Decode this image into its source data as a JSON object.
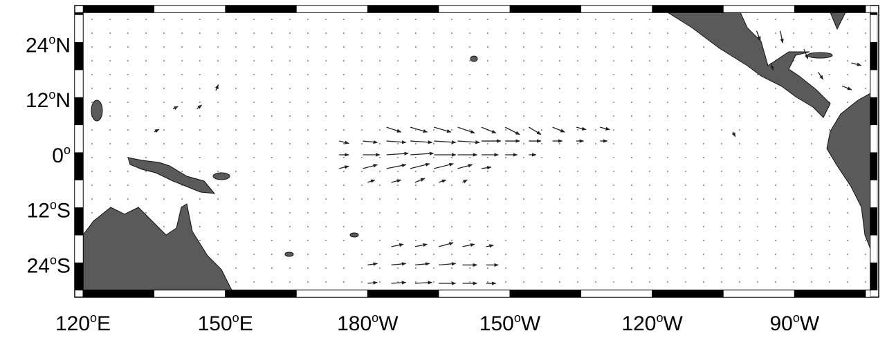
{
  "map": {
    "xlim": [
      120,
      286
    ],
    "ylim": [
      -29.5,
      31
    ],
    "lon_ticks": [
      {
        "value": 120,
        "deg": "120",
        "sup": "o",
        "hemi": "E"
      },
      {
        "value": 150,
        "deg": "150",
        "sup": "o",
        "hemi": "E"
      },
      {
        "value": 180,
        "deg": "180",
        "sup": "o",
        "hemi": "W"
      },
      {
        "value": 210,
        "deg": "150",
        "sup": "o",
        "hemi": "W"
      },
      {
        "value": 240,
        "deg": "120",
        "sup": "o",
        "hemi": "W"
      },
      {
        "value": 270,
        "deg": "90",
        "sup": "o",
        "hemi": "W"
      }
    ],
    "lat_ticks": [
      {
        "value": 24,
        "deg": "24",
        "sup": "o",
        "hemi": "N"
      },
      {
        "value": 12,
        "deg": "12",
        "sup": "o",
        "hemi": "N"
      },
      {
        "value": 0,
        "deg": "0",
        "sup": "o"
      },
      {
        "value": -12,
        "deg": "12",
        "sup": "o",
        "hemi": "S"
      },
      {
        "value": -24,
        "deg": "24",
        "sup": "o",
        "hemi": "S"
      }
    ],
    "vectors": [
      [
        184,
        6,
        3,
        -1
      ],
      [
        189,
        6,
        3.5,
        -1
      ],
      [
        194,
        6,
        3.5,
        -1
      ],
      [
        199,
        6,
        3.5,
        -1.2
      ],
      [
        204,
        6,
        3,
        -1.2
      ],
      [
        209,
        6,
        3,
        -1.5
      ],
      [
        214,
        6,
        2.5,
        -1.5
      ],
      [
        219,
        6,
        2.5,
        -1
      ],
      [
        224,
        6,
        2,
        -0.5
      ],
      [
        229,
        6,
        2,
        -0.5
      ],
      [
        174,
        3,
        2,
        -0.5
      ],
      [
        179,
        3,
        3,
        -0.3
      ],
      [
        184,
        3,
        4,
        -0.3
      ],
      [
        189,
        3,
        4.5,
        -0.3
      ],
      [
        194,
        3,
        4.5,
        -0.3
      ],
      [
        199,
        3,
        4.5,
        -0.3
      ],
      [
        204,
        3,
        4,
        0
      ],
      [
        209,
        3,
        3,
        0
      ],
      [
        214,
        3,
        2.5,
        0
      ],
      [
        219,
        3,
        2,
        0
      ],
      [
        224,
        3,
        1.5,
        0
      ],
      [
        229,
        3,
        1.5,
        0
      ],
      [
        174,
        0,
        2,
        0
      ],
      [
        179,
        0,
        3.5,
        0
      ],
      [
        184,
        0,
        4.5,
        0.3
      ],
      [
        189,
        0,
        4.8,
        0.3
      ],
      [
        194,
        0,
        4.5,
        0
      ],
      [
        199,
        0,
        4,
        0
      ],
      [
        204,
        0,
        3.5,
        0
      ],
      [
        209,
        0,
        2.5,
        0
      ],
      [
        214,
        0,
        1.5,
        0
      ],
      [
        174,
        -3,
        2,
        0.5
      ],
      [
        179,
        -3,
        3,
        0.8
      ],
      [
        184,
        -3,
        4,
        0.8
      ],
      [
        189,
        -3,
        4,
        1
      ],
      [
        194,
        -3,
        4,
        1
      ],
      [
        199,
        -3,
        3,
        0.8
      ],
      [
        204,
        -3,
        2,
        0.3
      ],
      [
        180,
        -6,
        1.5,
        0.5
      ],
      [
        185,
        -6,
        2,
        0.5
      ],
      [
        190,
        -6,
        2,
        0.8
      ],
      [
        195,
        -6,
        1.5,
        0.5
      ],
      [
        200,
        -6,
        1,
        0.5
      ],
      [
        185,
        -20,
        2.5,
        0.5
      ],
      [
        190,
        -20,
        2.5,
        0.5
      ],
      [
        195,
        -20,
        3,
        0.8
      ],
      [
        200,
        -20,
        2.5,
        0.5
      ],
      [
        205,
        -20,
        1.5,
        0.3
      ],
      [
        180,
        -24,
        2,
        0.3
      ],
      [
        185,
        -24,
        3,
        0.3
      ],
      [
        190,
        -24,
        3,
        0.3
      ],
      [
        195,
        -24,
        3.5,
        0.3
      ],
      [
        200,
        -24,
        3,
        0
      ],
      [
        205,
        -24,
        2.5,
        0
      ],
      [
        180,
        -28,
        2,
        0.2
      ],
      [
        185,
        -28,
        3,
        0.2
      ],
      [
        190,
        -28,
        3.5,
        0.2
      ],
      [
        195,
        -28,
        3.5,
        0
      ],
      [
        200,
        -28,
        3,
        0
      ],
      [
        205,
        -28,
        2,
        0
      ],
      [
        139,
        10,
        1,
        0.5
      ],
      [
        144,
        10,
        1,
        0.8
      ],
      [
        135,
        5,
        1,
        0.5
      ],
      [
        148,
        14,
        0.5,
        1.2
      ],
      [
        262,
        27,
        0.8,
        -2
      ],
      [
        267,
        27,
        0.5,
        -2.5
      ],
      [
        272,
        23,
        0.8,
        -2
      ],
      [
        275,
        18,
        1,
        -1.5
      ],
      [
        280,
        15,
        2,
        -0.8
      ],
      [
        282,
        20,
        2,
        -0.5
      ],
      [
        265,
        20,
        0.5,
        -1.5
      ],
      [
        257,
        5,
        0.5,
        -1
      ]
    ]
  }
}
